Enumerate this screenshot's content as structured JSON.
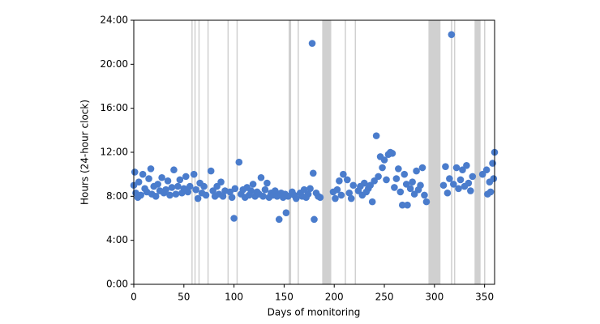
{
  "chart_data": {
    "type": "scatter",
    "xlabel": "Days of monitoring",
    "ylabel": "Hours (24-hour clock)",
    "color": "#4a7ccc",
    "band_color": "#d0d0d0",
    "xlim": [
      0,
      360
    ],
    "ylim": [
      0,
      24
    ],
    "xticks": [
      0,
      50,
      100,
      150,
      200,
      250,
      300,
      350
    ],
    "yticks": [
      {
        "value": 0,
        "label": "0:00"
      },
      {
        "value": 4,
        "label": "4:00"
      },
      {
        "value": 8,
        "label": "8:00"
      },
      {
        "value": 12,
        "label": "12:00"
      },
      {
        "value": 16,
        "label": "16:00"
      },
      {
        "value": 20,
        "label": "20:00"
      },
      {
        "value": 24,
        "label": "24:00"
      }
    ],
    "shaded_ranges": [
      [
        57.5,
        58.5
      ],
      [
        60.5,
        61.5
      ],
      [
        64.5,
        65.5
      ],
      [
        73.5,
        74.5
      ],
      [
        93.5,
        94.5
      ],
      [
        102.5,
        103.5
      ],
      [
        154.5,
        157
      ],
      [
        163.5,
        164.5
      ],
      [
        188,
        197
      ],
      [
        210.5,
        211.5
      ],
      [
        220.5,
        221.5
      ],
      [
        294,
        306
      ],
      [
        316.5,
        317.5
      ],
      [
        319.5,
        320.5
      ],
      [
        340,
        346
      ],
      [
        349.5,
        350.5
      ]
    ],
    "x": [
      0,
      1,
      2,
      4,
      5,
      7,
      9,
      11,
      13,
      15,
      17,
      18,
      20,
      22,
      24,
      26,
      28,
      30,
      32,
      34,
      36,
      38,
      40,
      42,
      44,
      46,
      48,
      50,
      52,
      54,
      56,
      60,
      62,
      64,
      66,
      68,
      70,
      72,
      77,
      79,
      81,
      83,
      85,
      87,
      89,
      91,
      96,
      98,
      100,
      101,
      105,
      107,
      109,
      111,
      113,
      115,
      117,
      119,
      121,
      123,
      125,
      127,
      129,
      131,
      133,
      135,
      137,
      139,
      141,
      143,
      145,
      147,
      149,
      151,
      152,
      154,
      158,
      160,
      162,
      166,
      168,
      170,
      172,
      174,
      176,
      178,
      179,
      180,
      182,
      184,
      186,
      199,
      201,
      203,
      205,
      207,
      209,
      213,
      215,
      217,
      219,
      224,
      226,
      228,
      230,
      232,
      234,
      236,
      238,
      240,
      242,
      244,
      246,
      248,
      250,
      252,
      254,
      256,
      258,
      260,
      262,
      264,
      266,
      268,
      270,
      272,
      273,
      276,
      278,
      280,
      282,
      284,
      286,
      288,
      290,
      292,
      309,
      311,
      313,
      315,
      317,
      319,
      322,
      324,
      326,
      328,
      330,
      332,
      334,
      336,
      338,
      348,
      352,
      353,
      355,
      356,
      358,
      359,
      360
    ],
    "y": [
      9.0,
      10.2,
      8.3,
      7.9,
      9.3,
      8.1,
      10.0,
      8.7,
      8.4,
      9.6,
      10.5,
      8.2,
      8.9,
      8.0,
      9.1,
      8.5,
      9.7,
      8.3,
      8.6,
      9.4,
      8.1,
      8.8,
      10.4,
      8.2,
      8.9,
      9.5,
      8.3,
      8.7,
      9.8,
      8.4,
      8.9,
      10.0,
      8.6,
      7.8,
      9.2,
      8.3,
      8.9,
      8.1,
      10.3,
      8.5,
      8.0,
      8.9,
      8.2,
      9.3,
      8.0,
      8.5,
      8.4,
      7.9,
      6.0,
      8.7,
      11.1,
      8.2,
      8.6,
      7.9,
      8.8,
      8.1,
      8.5,
      9.1,
      8.0,
      8.4,
      8.2,
      9.7,
      8.0,
      8.6,
      9.2,
      7.9,
      8.3,
      8.1,
      8.5,
      8.0,
      5.9,
      8.3,
      7.9,
      8.2,
      6.5,
      8.0,
      8.4,
      8.1,
      7.8,
      8.3,
      8.0,
      8.6,
      7.9,
      8.2,
      8.7,
      21.9,
      10.1,
      5.9,
      8.3,
      8.0,
      7.9,
      8.4,
      7.8,
      8.6,
      9.4,
      8.1,
      10.0,
      9.5,
      8.3,
      7.8,
      9.0,
      8.5,
      8.9,
      8.1,
      9.2,
      8.4,
      8.7,
      9.0,
      7.5,
      9.4,
      13.5,
      9.8,
      11.6,
      10.6,
      11.3,
      9.5,
      11.8,
      12.0,
      11.9,
      8.8,
      9.6,
      10.5,
      8.4,
      7.2,
      10.0,
      9.1,
      7.2,
      8.7,
      9.3,
      8.2,
      10.3,
      8.6,
      9.0,
      10.6,
      8.1,
      7.5,
      9.0,
      10.7,
      8.3,
      9.6,
      22.7,
      9.1,
      10.6,
      8.7,
      9.5,
      10.4,
      8.9,
      10.8,
      9.2,
      8.5,
      9.8,
      10.0,
      10.4,
      8.2,
      9.3,
      8.4,
      11.0,
      9.6,
      12.0
    ]
  }
}
